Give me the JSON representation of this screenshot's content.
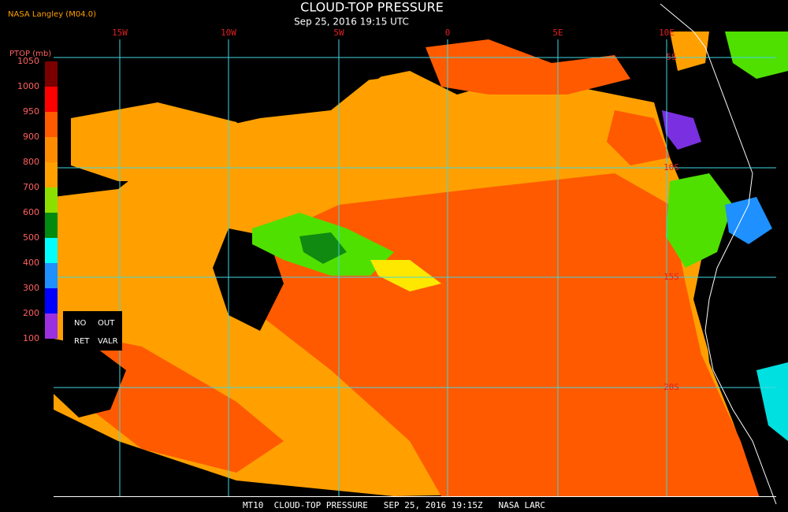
{
  "header": {
    "source": "NASA Langley (M04.0)",
    "title": "CLOUD-TOP PRESSURE",
    "subtitle": "Sep 25, 2016 19:15 UTC"
  },
  "legend": {
    "title": "PTOP (mb)",
    "labels": [
      "1050",
      "1000",
      "950",
      "900",
      "800",
      "700",
      "600",
      "500",
      "400",
      "300",
      "200",
      "100"
    ],
    "notes": [
      "NO",
      "OUT",
      "RET",
      "VALR"
    ]
  },
  "grid": {
    "longitudes": [
      "15W",
      "10W",
      "5W",
      "0",
      "5E",
      "10E"
    ],
    "latitudes": [
      "5S",
      "10S",
      "15S",
      "20S"
    ]
  },
  "footer": "MT10  CLOUD-TOP PRESSURE   SEP 25, 2016 19:15Z   NASA LARC"
}
